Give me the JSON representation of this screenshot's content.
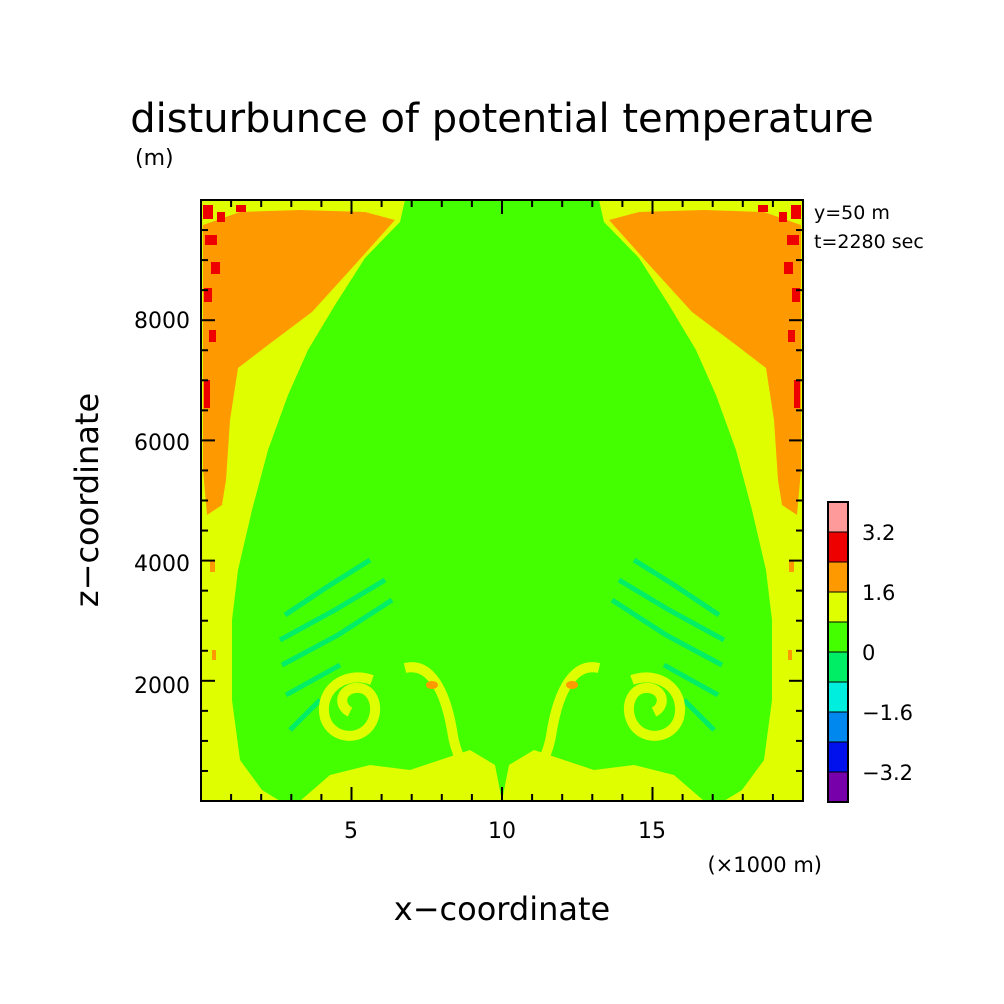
{
  "chart_data": {
    "type": "heatmap",
    "title": "disturbunce of potential temperature",
    "units": "(m)",
    "xlabel": "x−coordinate",
    "ylabel": "z−coordinate",
    "x_unit_note": "(×1000 m)",
    "info_lines": [
      "y=50  m",
      "t=2280 sec"
    ],
    "xlim": [
      0,
      20
    ],
    "ylim": [
      0,
      10000
    ],
    "x_ticks": [
      5,
      10,
      15
    ],
    "x_tick_labels": [
      "5",
      "10",
      "15"
    ],
    "y_ticks": [
      2000,
      4000,
      6000,
      8000
    ],
    "y_tick_labels": [
      "2000",
      "4000",
      "6000",
      "8000"
    ],
    "grid": false,
    "colorbar": {
      "levels": [
        {
          "range": "> 4.0",
          "color": "#ff9a9a"
        },
        {
          "range": "3.2 – 4.0",
          "color": "#ee0000"
        },
        {
          "range": "1.6 – 2.4",
          "color": "#ff9900"
        },
        {
          "range": "0.8 – 1.6",
          "color": "#dfff00"
        },
        {
          "range": "0 – 0.8",
          "color": "#44ff00"
        },
        {
          "range": "−0.8 – 0",
          "color": "#00ee66"
        },
        {
          "range": "−1.6 – −0.8",
          "color": "#00eedd"
        },
        {
          "range": "−2.4 – −1.6",
          "color": "#0088ee"
        },
        {
          "range": "−3.2 – −2.4",
          "color": "#0011ee"
        },
        {
          "range": "< −3.2",
          "color": "#7700aa"
        }
      ],
      "labels": [
        "3.2",
        "1.6",
        "0",
        "−1.6",
        "−3.2"
      ]
    },
    "field_colors": {
      "background": "#44ff00",
      "warm_edge": "#dfff00",
      "hot": "#ff9900",
      "very_hot": "#ee0000",
      "cool": "#00ee66"
    }
  }
}
